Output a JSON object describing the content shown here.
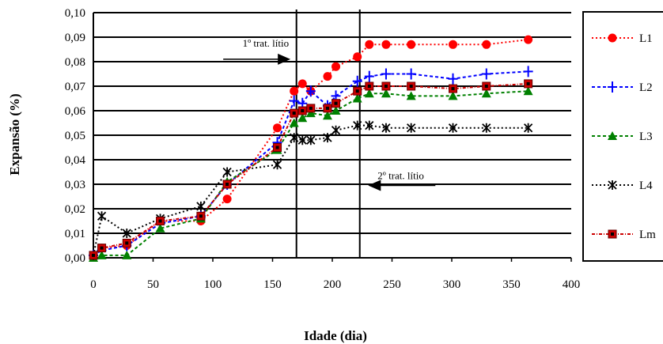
{
  "chart_data": {
    "type": "line",
    "xlabel": "Idade (dia)",
    "ylabel": "Expansão (%)",
    "xlim": [
      0,
      400
    ],
    "ylim": [
      0,
      0.1
    ],
    "x_ticks": [
      "0",
      "50",
      "100",
      "150",
      "200",
      "250",
      "300",
      "350",
      "400"
    ],
    "y_ticks": [
      "0,00",
      "0,01",
      "0,02",
      "0,03",
      "0,04",
      "0,05",
      "0,06",
      "0,07",
      "0,08",
      "0,09",
      "0,10"
    ],
    "grid": "horizontal",
    "legend_position": "right",
    "vertical_lines_x": [
      170,
      223
    ],
    "annotations": [
      {
        "text": "1º trat. lítio",
        "x": 165,
        "y": 0.081,
        "arrow": "right"
      },
      {
        "text": "2º trat. lítio",
        "x": 230,
        "y": 0.0295,
        "arrow": "left"
      }
    ],
    "series": [
      {
        "name": "L1",
        "color": "#ff0000",
        "marker": "circle",
        "x": [
          0,
          7,
          28,
          56,
          90,
          112,
          154,
          168,
          175,
          182,
          196,
          203,
          221,
          231,
          245,
          266,
          301,
          329,
          364
        ],
        "y": [
          0.001,
          0.004,
          0.005,
          0.015,
          0.015,
          0.024,
          0.053,
          0.068,
          0.071,
          0.068,
          0.074,
          0.078,
          0.082,
          0.087,
          0.087,
          0.087,
          0.087,
          0.087,
          0.089
        ]
      },
      {
        "name": "L2",
        "color": "#0000ff",
        "marker": "plus",
        "x": [
          0,
          7,
          28,
          56,
          90,
          112,
          154,
          168,
          175,
          182,
          196,
          203,
          221,
          231,
          245,
          266,
          301,
          329,
          364
        ],
        "y": [
          0.001,
          0.003,
          0.005,
          0.014,
          0.017,
          0.03,
          0.047,
          0.064,
          0.063,
          0.068,
          0.062,
          0.066,
          0.072,
          0.074,
          0.075,
          0.075,
          0.073,
          0.075,
          0.076
        ]
      },
      {
        "name": "L3",
        "color": "#008000",
        "marker": "triangle",
        "x": [
          0,
          7,
          28,
          56,
          90,
          112,
          154,
          168,
          175,
          182,
          196,
          203,
          221,
          231,
          245,
          266,
          301,
          329,
          364
        ],
        "y": [
          0.0,
          0.001,
          0.001,
          0.012,
          0.016,
          0.031,
          0.044,
          0.055,
          0.057,
          0.059,
          0.058,
          0.06,
          0.065,
          0.067,
          0.067,
          0.066,
          0.066,
          0.067,
          0.068
        ]
      },
      {
        "name": "L4",
        "color": "#000000",
        "marker": "asterisk",
        "x": [
          0,
          7,
          28,
          56,
          90,
          112,
          154,
          168,
          175,
          182,
          196,
          203,
          221,
          231,
          245,
          266,
          301,
          329,
          364
        ],
        "y": [
          0.001,
          0.017,
          0.01,
          0.016,
          0.021,
          0.035,
          0.038,
          0.049,
          0.048,
          0.048,
          0.049,
          0.052,
          0.054,
          0.054,
          0.053,
          0.053,
          0.053,
          0.053,
          0.053
        ]
      },
      {
        "name": "Lm",
        "color": "#cc0000",
        "marker": "square",
        "x": [
          0,
          7,
          28,
          56,
          90,
          112,
          154,
          168,
          175,
          182,
          196,
          203,
          221,
          231,
          245,
          266,
          301,
          329,
          364
        ],
        "y": [
          0.001,
          0.004,
          0.006,
          0.015,
          0.017,
          0.03,
          0.045,
          0.059,
          0.06,
          0.061,
          0.061,
          0.063,
          0.068,
          0.07,
          0.07,
          0.07,
          0.069,
          0.07,
          0.071
        ]
      }
    ]
  }
}
